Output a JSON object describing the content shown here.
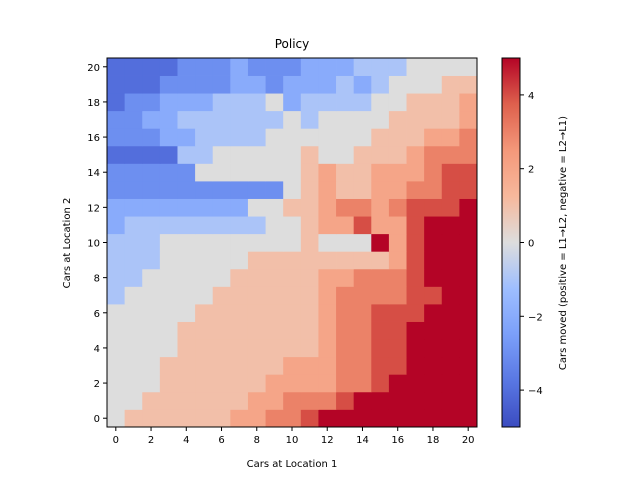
{
  "chart_data": {
    "type": "heatmap",
    "title": "Policy",
    "xlabel": "Cars at Location 1",
    "ylabel": "Cars at Location 2",
    "colorbar_label": "Cars moved (positive = L1→L2, negative = L2→L1)",
    "colormap": "coolwarm",
    "vmin": -5,
    "vmax": 5,
    "x_ticks": [
      0,
      2,
      4,
      6,
      8,
      10,
      12,
      14,
      16,
      18,
      20
    ],
    "y_ticks": [
      0,
      2,
      4,
      6,
      8,
      10,
      12,
      14,
      16,
      18,
      20
    ],
    "colorbar_ticks": [
      -4,
      -2,
      0,
      2,
      4
    ],
    "x_range": [
      0,
      20
    ],
    "y_range": [
      0,
      20
    ],
    "grid": false,
    "policy_rows_y0_to_y20": [
      [
        0,
        1,
        1,
        1,
        1,
        1,
        1,
        2,
        2,
        3,
        3,
        4,
        5,
        5,
        5,
        5,
        5,
        5,
        5,
        5,
        5
      ],
      [
        0,
        0,
        1,
        1,
        1,
        1,
        1,
        1,
        2,
        2,
        3,
        3,
        3,
        4,
        5,
        5,
        5,
        5,
        5,
        5,
        5
      ],
      [
        0,
        0,
        0,
        1,
        1,
        1,
        1,
        1,
        1,
        2,
        2,
        2,
        2,
        3,
        3,
        4,
        5,
        5,
        5,
        5,
        5
      ],
      [
        0,
        0,
        0,
        1,
        1,
        1,
        1,
        1,
        1,
        1,
        2,
        2,
        2,
        3,
        3,
        4,
        4,
        5,
        5,
        5,
        5
      ],
      [
        0,
        0,
        0,
        0,
        1,
        1,
        1,
        1,
        1,
        1,
        1,
        1,
        2,
        3,
        3,
        4,
        4,
        5,
        5,
        5,
        5
      ],
      [
        0,
        0,
        0,
        0,
        1,
        1,
        1,
        1,
        1,
        1,
        1,
        1,
        2,
        3,
        3,
        4,
        4,
        5,
        5,
        5,
        5
      ],
      [
        0,
        0,
        0,
        0,
        0,
        1,
        1,
        1,
        1,
        1,
        1,
        1,
        2,
        3,
        3,
        4,
        4,
        4,
        5,
        5,
        5
      ],
      [
        -1,
        0,
        0,
        0,
        0,
        0,
        1,
        1,
        1,
        1,
        1,
        1,
        2,
        3,
        3,
        3,
        3,
        4,
        4,
        5,
        5
      ],
      [
        -1,
        -1,
        0,
        0,
        0,
        0,
        0,
        1,
        1,
        1,
        1,
        1,
        2,
        2,
        3,
        3,
        3,
        4,
        5,
        5,
        5
      ],
      [
        -1,
        -1,
        -1,
        0,
        0,
        0,
        0,
        0,
        1,
        1,
        1,
        1,
        1,
        1,
        1,
        1,
        2,
        4,
        5,
        5,
        5
      ],
      [
        -1,
        -1,
        -1,
        0,
        0,
        0,
        0,
        0,
        0,
        0,
        0,
        1,
        0,
        0,
        0,
        5,
        2,
        4,
        5,
        5,
        5
      ],
      [
        -2,
        -1,
        -1,
        -1,
        -1,
        -1,
        -1,
        -1,
        -1,
        0,
        0,
        1,
        2,
        2,
        4,
        2,
        2,
        4,
        5,
        5,
        5
      ],
      [
        -2,
        -2,
        -2,
        -2,
        -2,
        -2,
        -2,
        -2,
        0,
        0,
        1,
        1,
        2,
        3,
        3,
        2,
        3,
        4,
        4,
        4,
        5
      ],
      [
        -3,
        -3,
        -3,
        -3,
        -3,
        -3,
        -3,
        -3,
        -3,
        -3,
        0,
        1,
        2,
        1,
        1,
        2,
        2,
        3,
        3,
        4,
        4
      ],
      [
        -3,
        -3,
        -3,
        -3,
        -3,
        0,
        0,
        0,
        0,
        0,
        0,
        1,
        2,
        1,
        1,
        2,
        2,
        2,
        3,
        4,
        4
      ],
      [
        -4,
        -4,
        -4,
        -4,
        -1,
        -1,
        0,
        0,
        0,
        0,
        0,
        1,
        0,
        0,
        1,
        1,
        1,
        2,
        3,
        3,
        3
      ],
      [
        -3,
        -3,
        -3,
        -2,
        -2,
        -1,
        -1,
        -1,
        -1,
        0,
        0,
        0,
        0,
        0,
        0,
        1,
        1,
        1,
        2,
        2,
        3
      ],
      [
        -3,
        -3,
        -2,
        -2,
        -1,
        -1,
        -1,
        -1,
        -1,
        -1,
        0,
        -1,
        0,
        0,
        0,
        0,
        1,
        1,
        1,
        1,
        2
      ],
      [
        -4,
        -3,
        -3,
        -2,
        -2,
        -2,
        -1,
        -1,
        -1,
        0,
        -2,
        -1,
        -1,
        -1,
        -1,
        0,
        0,
        1,
        1,
        1,
        2
      ],
      [
        -4,
        -4,
        -4,
        -3,
        -3,
        -3,
        -3,
        -2,
        -2,
        -3,
        -2,
        -2,
        -2,
        -1,
        -2,
        -1,
        0,
        0,
        0,
        1,
        1
      ],
      [
        -4,
        -4,
        -4,
        -4,
        -3,
        -3,
        -3,
        -2,
        -3,
        -3,
        -3,
        -2,
        -2,
        -2,
        -1,
        -1,
        -1,
        0,
        0,
        0,
        0
      ]
    ]
  }
}
